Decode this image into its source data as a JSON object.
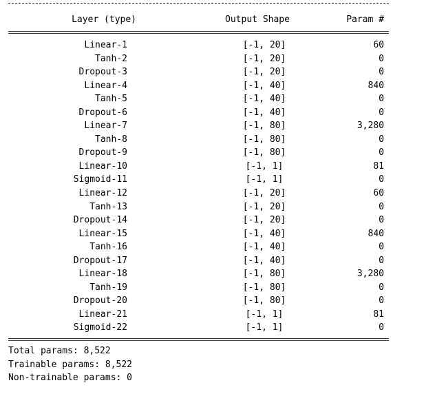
{
  "header": {
    "layer": "Layer (type)",
    "shape": "Output Shape",
    "param": "Param #"
  },
  "rows": [
    {
      "layer": "Linear-1",
      "shape": "[-1, 20]",
      "param": "60"
    },
    {
      "layer": "Tanh-2",
      "shape": "[-1, 20]",
      "param": "0"
    },
    {
      "layer": "Dropout-3",
      "shape": "[-1, 20]",
      "param": "0"
    },
    {
      "layer": "Linear-4",
      "shape": "[-1, 40]",
      "param": "840"
    },
    {
      "layer": "Tanh-5",
      "shape": "[-1, 40]",
      "param": "0"
    },
    {
      "layer": "Dropout-6",
      "shape": "[-1, 40]",
      "param": "0"
    },
    {
      "layer": "Linear-7",
      "shape": "[-1, 80]",
      "param": "3,280"
    },
    {
      "layer": "Tanh-8",
      "shape": "[-1, 80]",
      "param": "0"
    },
    {
      "layer": "Dropout-9",
      "shape": "[-1, 80]",
      "param": "0"
    },
    {
      "layer": "Linear-10",
      "shape": "[-1, 1]",
      "param": "81"
    },
    {
      "layer": "Sigmoid-11",
      "shape": "[-1, 1]",
      "param": "0"
    },
    {
      "layer": "Linear-12",
      "shape": "[-1, 20]",
      "param": "60"
    },
    {
      "layer": "Tanh-13",
      "shape": "[-1, 20]",
      "param": "0"
    },
    {
      "layer": "Dropout-14",
      "shape": "[-1, 20]",
      "param": "0"
    },
    {
      "layer": "Linear-15",
      "shape": "[-1, 40]",
      "param": "840"
    },
    {
      "layer": "Tanh-16",
      "shape": "[-1, 40]",
      "param": "0"
    },
    {
      "layer": "Dropout-17",
      "shape": "[-1, 40]",
      "param": "0"
    },
    {
      "layer": "Linear-18",
      "shape": "[-1, 80]",
      "param": "3,280"
    },
    {
      "layer": "Tanh-19",
      "shape": "[-1, 80]",
      "param": "0"
    },
    {
      "layer": "Dropout-20",
      "shape": "[-1, 80]",
      "param": "0"
    },
    {
      "layer": "Linear-21",
      "shape": "[-1, 1]",
      "param": "81"
    },
    {
      "layer": "Sigmoid-22",
      "shape": "[-1, 1]",
      "param": "0"
    }
  ],
  "footer": {
    "total": "Total params: 8,522",
    "trainable": "Trainable params: 8,522",
    "non_trainable": "Non-trainable params: 0"
  }
}
